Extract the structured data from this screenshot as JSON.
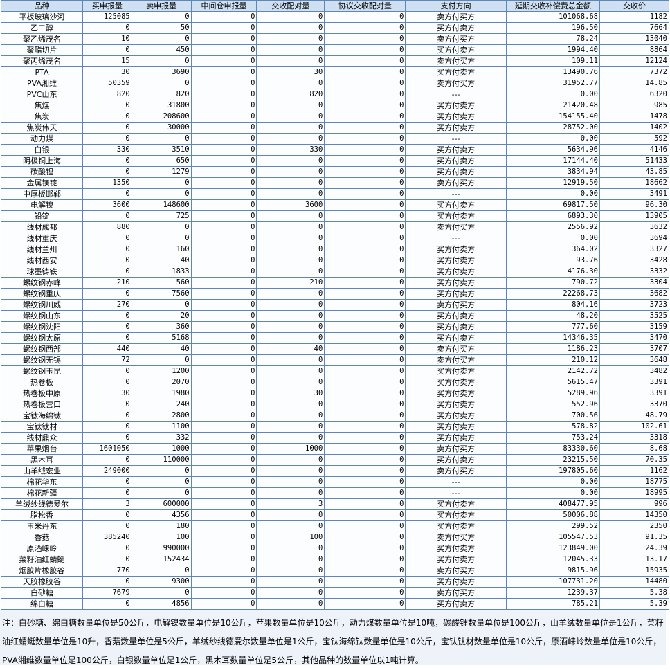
{
  "columns": [
    "品种",
    "买申报量",
    "卖申报量",
    "中间仓申报量",
    "交收配对量",
    "协议交收配对量",
    "支付方向",
    "延期交收补偿费总金额",
    "交收价"
  ],
  "rows": [
    [
      "平板玻璃沙河",
      "125085",
      "0",
      "0",
      "0",
      "0",
      "卖方付买方",
      "101068.68",
      "1182"
    ],
    [
      "乙二醇",
      "0",
      "50",
      "0",
      "0",
      "0",
      "买方付卖方",
      "196.50",
      "7664"
    ],
    [
      "聚乙烯茂名",
      "10",
      "0",
      "0",
      "0",
      "0",
      "卖方付买方",
      "78.24",
      "13040"
    ],
    [
      "聚酯切片",
      "0",
      "450",
      "0",
      "0",
      "0",
      "买方付卖方",
      "1994.40",
      "8864"
    ],
    [
      "聚丙烯茂名",
      "15",
      "0",
      "0",
      "0",
      "0",
      "卖方付买方",
      "109.11",
      "12124"
    ],
    [
      "PTA",
      "30",
      "3690",
      "0",
      "30",
      "0",
      "买方付卖方",
      "13490.76",
      "7372"
    ],
    [
      "PVA湘维",
      "50359",
      "0",
      "0",
      "0",
      "0",
      "卖方付买方",
      "31952.77",
      "14.85"
    ],
    [
      "PVC山东",
      "820",
      "820",
      "0",
      "820",
      "0",
      "---",
      "0.00",
      "6320"
    ],
    [
      "焦煤",
      "0",
      "31800",
      "0",
      "0",
      "0",
      "买方付卖方",
      "21420.48",
      "985"
    ],
    [
      "焦炭",
      "0",
      "208600",
      "0",
      "0",
      "0",
      "买方付卖方",
      "154155.40",
      "1478"
    ],
    [
      "焦炭伟天",
      "0",
      "30000",
      "0",
      "0",
      "0",
      "买方付卖方",
      "28752.00",
      "1402"
    ],
    [
      "动力煤",
      "0",
      "0",
      "0",
      "0",
      "0",
      "---",
      "0.00",
      "592"
    ],
    [
      "白银",
      "330",
      "3510",
      "0",
      "330",
      "0",
      "买方付卖方",
      "5634.96",
      "4146"
    ],
    [
      "阴极铜上海",
      "0",
      "650",
      "0",
      "0",
      "0",
      "买方付卖方",
      "17144.40",
      "51433"
    ],
    [
      "碳酸锂",
      "0",
      "1279",
      "0",
      "0",
      "0",
      "买方付卖方",
      "3834.94",
      "43.85"
    ],
    [
      "金属镁锭",
      "1350",
      "0",
      "0",
      "0",
      "0",
      "卖方付买方",
      "12919.50",
      "18662"
    ],
    [
      "中厚板邯郸",
      "0",
      "0",
      "0",
      "0",
      "0",
      "---",
      "0.00",
      "3491"
    ],
    [
      "电解镍",
      "3600",
      "148600",
      "0",
      "3600",
      "0",
      "买方付卖方",
      "69817.50",
      "96.30"
    ],
    [
      "铅锭",
      "0",
      "725",
      "0",
      "0",
      "0",
      "买方付卖方",
      "6893.30",
      "13905"
    ],
    [
      "线材成都",
      "880",
      "0",
      "0",
      "0",
      "0",
      "卖方付买方",
      "2556.92",
      "3632"
    ],
    [
      "线材重庆",
      "0",
      "0",
      "0",
      "0",
      "0",
      "---",
      "0.00",
      "3694"
    ],
    [
      "线材兰州",
      "0",
      "160",
      "0",
      "0",
      "0",
      "买方付卖方",
      "364.02",
      "3327"
    ],
    [
      "线材西安",
      "0",
      "40",
      "0",
      "0",
      "0",
      "买方付卖方",
      "93.76",
      "3428"
    ],
    [
      "球墨铸铁",
      "0",
      "1833",
      "0",
      "0",
      "0",
      "买方付卖方",
      "4176.30",
      "3332"
    ],
    [
      "螺纹钢赤峰",
      "210",
      "560",
      "0",
      "210",
      "0",
      "买方付卖方",
      "790.72",
      "3304"
    ],
    [
      "螺纹钢重庆",
      "0",
      "7560",
      "0",
      "0",
      "0",
      "买方付卖方",
      "22268.73",
      "3682"
    ],
    [
      "螺纹钢川威",
      "270",
      "0",
      "0",
      "0",
      "0",
      "卖方付买方",
      "804.16",
      "3723"
    ],
    [
      "螺纹钢山东",
      "0",
      "20",
      "0",
      "0",
      "0",
      "买方付卖方",
      "48.20",
      "3525"
    ],
    [
      "螺纹钢沈阳",
      "0",
      "360",
      "0",
      "0",
      "0",
      "买方付卖方",
      "777.60",
      "3159"
    ],
    [
      "螺纹钢太原",
      "0",
      "5168",
      "0",
      "0",
      "0",
      "买方付卖方",
      "14346.35",
      "3470"
    ],
    [
      "螺纹钢西部",
      "440",
      "40",
      "0",
      "40",
      "0",
      "卖方付买方",
      "1186.23",
      "3707"
    ],
    [
      "螺纹钢无锡",
      "72",
      "0",
      "0",
      "0",
      "0",
      "卖方付买方",
      "210.12",
      "3648"
    ],
    [
      "螺纹钢玉昆",
      "0",
      "1200",
      "0",
      "0",
      "0",
      "买方付卖方",
      "2142.72",
      "3482"
    ],
    [
      "热卷板",
      "0",
      "2070",
      "0",
      "0",
      "0",
      "买方付卖方",
      "5615.47",
      "3391"
    ],
    [
      "热卷板中原",
      "30",
      "1980",
      "0",
      "30",
      "0",
      "买方付卖方",
      "5289.96",
      "3391"
    ],
    [
      "热卷板营口",
      "0",
      "240",
      "0",
      "0",
      "0",
      "买方付卖方",
      "552.96",
      "3370"
    ],
    [
      "宝钛海绵钛",
      "0",
      "2800",
      "0",
      "0",
      "0",
      "买方付卖方",
      "700.56",
      "48.79"
    ],
    [
      "宝钛钛材",
      "0",
      "1100",
      "0",
      "0",
      "0",
      "买方付卖方",
      "578.82",
      "102.61"
    ],
    [
      "线材鼎众",
      "0",
      "332",
      "0",
      "0",
      "0",
      "买方付卖方",
      "753.24",
      "3318"
    ],
    [
      "苹果烟台",
      "1601050",
      "1000",
      "0",
      "1000",
      "0",
      "卖方付买方",
      "83330.60",
      "8.68"
    ],
    [
      "黑木耳",
      "0",
      "110000",
      "0",
      "0",
      "0",
      "买方付卖方",
      "23215.50",
      "70.35"
    ],
    [
      "山羊绒宏业",
      "249000",
      "0",
      "0",
      "0",
      "0",
      "卖方付买方",
      "197805.60",
      "1162"
    ],
    [
      "棉花华东",
      "0",
      "0",
      "0",
      "0",
      "0",
      "---",
      "0.00",
      "18775"
    ],
    [
      "棉花新疆",
      "0",
      "0",
      "0",
      "0",
      "0",
      "---",
      "0.00",
      "18995"
    ],
    [
      "羊绒纱线德爱尔",
      "3",
      "600000",
      "0",
      "3",
      "0",
      "买方付卖方",
      "408477.95",
      "996"
    ],
    [
      "脂松香",
      "0",
      "4356",
      "0",
      "0",
      "0",
      "买方付卖方",
      "50006.88",
      "14350"
    ],
    [
      "玉米丹东",
      "0",
      "180",
      "0",
      "0",
      "0",
      "买方付卖方",
      "299.52",
      "2350"
    ],
    [
      "香菇",
      "385240",
      "100",
      "0",
      "100",
      "0",
      "卖方付买方",
      "105547.53",
      "91.35"
    ],
    [
      "原酒崃岭",
      "0",
      "990000",
      "0",
      "0",
      "0",
      "买方付卖方",
      "123849.00",
      "24.39"
    ],
    [
      "菜籽油红蜻蜓",
      "0",
      "152434",
      "0",
      "0",
      "0",
      "买方付卖方",
      "12045.33",
      "13.17"
    ],
    [
      "烟胶片橡胶谷",
      "770",
      "0",
      "0",
      "0",
      "0",
      "卖方付买方",
      "9815.96",
      "15935"
    ],
    [
      "天胶橡胶谷",
      "0",
      "9300",
      "0",
      "0",
      "0",
      "买方付卖方",
      "107731.20",
      "14480"
    ],
    [
      "白砂糖",
      "7679",
      "0",
      "0",
      "0",
      "0",
      "卖方付买方",
      "1239.37",
      "5.38"
    ],
    [
      "绵白糖",
      "0",
      "4856",
      "0",
      "0",
      "0",
      "买方付卖方",
      "785.21",
      "5.39"
    ]
  ],
  "note": "注：白砂糖、绵白糖数量单位是50公斤，电解镍数量单位是10公斤，苹果数量单位是10公斤，动力煤数量单位是10吨，碳酸锂数量单位是100公斤，山羊绒数量单位是1公斤，菜籽油红蜻蜓数量单位是10升，香菇数量单位是5公斤，羊绒纱线德爱尔数量单位是1公斤，宝钛海绵钛数量单位是10公斤，宝钛钛材数量单位是10公斤，原酒崃岭数量单位是10公斤，PVA湘维数量单位是100公斤，白银数量单位是1公斤，黑木耳数量单位是5公斤，其他品种的数量单位以1吨计算。"
}
